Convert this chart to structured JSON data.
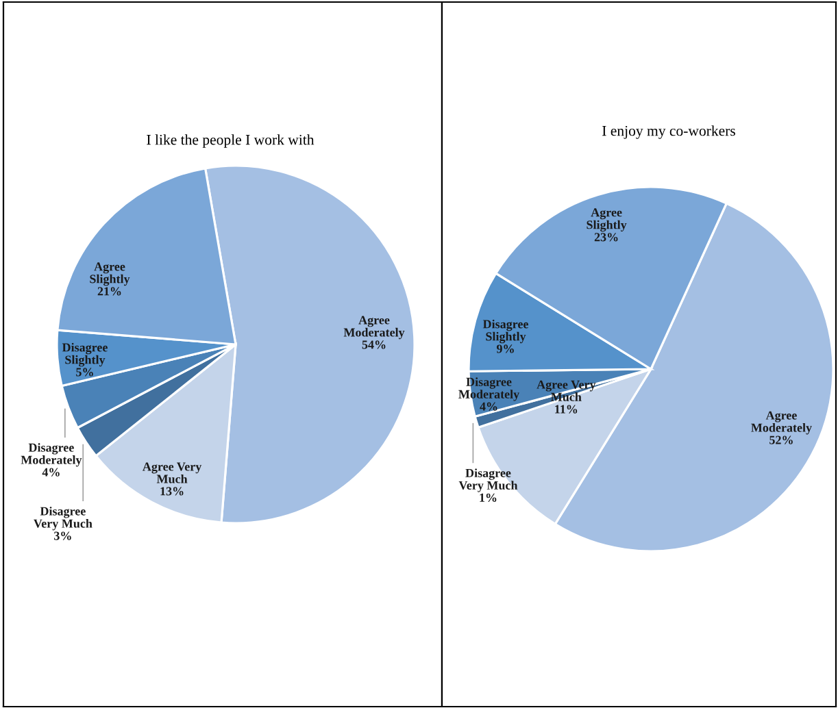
{
  "chart_data": [
    {
      "type": "pie",
      "title": "I like the people I work with",
      "categories": [
        "Agree Moderately",
        "Agree Very Much",
        "Disagree Very Much",
        "Disagree Moderately",
        "Disagree Slightly",
        "Agree Slightly"
      ],
      "values": [
        54,
        13,
        3,
        4,
        5,
        21
      ],
      "colors": [
        "#a4bfe3",
        "#c4d4ea",
        "#41709e",
        "#4a82b7",
        "#5592cb",
        "#7ba7d8"
      ],
      "value_labels": [
        "54%",
        "13%",
        "3%",
        "4%",
        "5%",
        "21%"
      ]
    },
    {
      "type": "pie",
      "title": "I enjoy my co-workers",
      "categories": [
        "Agree Moderately",
        "Agree Very Much",
        "Disagree Very Much",
        "Disagree Moderately",
        "Disagree Slightly",
        "Agree Slightly"
      ],
      "values": [
        52,
        11,
        1,
        4,
        9,
        23
      ],
      "colors": [
        "#a4bfe3",
        "#c4d4ea",
        "#41709e",
        "#4a82b7",
        "#5592cb",
        "#7ba7d8"
      ],
      "value_labels": [
        "52%",
        "11%",
        "1%",
        "4%",
        "9%",
        "23%"
      ]
    }
  ]
}
